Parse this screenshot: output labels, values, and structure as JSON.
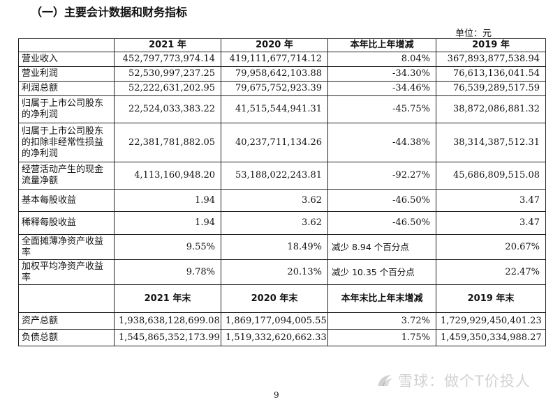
{
  "title": "（一）主要会计数据和财务指标",
  "unit": "单位：元",
  "headers": [
    "",
    "2021 年",
    "2020 年",
    "本年比上年增减",
    "2019 年"
  ],
  "rows": [
    {
      "label": "营业收入",
      "v2021": "452,797,773,974.14",
      "v2020": "419,111,677,714.12",
      "change": "8.04%",
      "v2019": "367,893,877,538.94"
    },
    {
      "label": "营业利润",
      "v2021": "52,530,997,237.25",
      "v2020": "79,958,642,103.88",
      "change": "-34.30%",
      "v2019": "76,613,136,041.54"
    },
    {
      "label": "利润总额",
      "v2021": "52,222,631,202.95",
      "v2020": "79,675,752,923.39",
      "change": "-34.46%",
      "v2019": "76,539,289,517.59"
    },
    {
      "label": "归属于上市公司股东的净利润",
      "v2021": "22,524,033,383.22",
      "v2020": "41,515,544,941.31",
      "change": "-45.75%",
      "v2019": "38,872,086,881.32"
    },
    {
      "label": "归属于上市公司股东的扣除非经常性损益的净利润",
      "v2021": "22,381,781,882.05",
      "v2020": "40,237,711,134.26",
      "change": "-44.38%",
      "v2019": "38,314,387,512.31"
    },
    {
      "label": "经营活动产生的现金流量净额",
      "v2021": "4,113,160,948.20",
      "v2020": "53,188,022,243.81",
      "change": "-92.27%",
      "v2019": "45,686,809,515.08"
    },
    {
      "label": "基本每股收益",
      "v2021": "1.94",
      "v2020": "3.62",
      "change": "-46.50%",
      "v2019": "3.47"
    },
    {
      "label": "稀释每股收益",
      "v2021": "1.94",
      "v2020": "3.62",
      "change": "-46.50%",
      "v2019": "3.47"
    },
    {
      "label": "全面摊薄净资产收益率",
      "v2021": "9.55%",
      "v2020": "18.49%",
      "change": "减少 8.94 个百分点",
      "v2019": "20.67%"
    },
    {
      "label": "加权平均净资产收益率",
      "v2021": "9.78%",
      "v2020": "20.13%",
      "change": "减少 10.35 个百分点",
      "v2019": "22.47%"
    }
  ],
  "headers2": [
    "",
    "2021 年末",
    "2020 年末",
    "本年末比上年末增减",
    "2019 年末"
  ],
  "rows2": [
    {
      "label": "资产总额",
      "v2021": "1,938,638,128,699.08",
      "v2020": "1,869,177,094,005.55",
      "change": "3.72%",
      "v2019": "1,729,929,450,401.23"
    },
    {
      "label": "负债总额",
      "v2021": "1,545,865,352,173.99",
      "v2020": "1,519,332,620,662.33",
      "change": "1.75%",
      "v2019": "1,459,350,334,988.27"
    }
  ],
  "watermark": "雪球：做个T价投人",
  "page_number": "9"
}
